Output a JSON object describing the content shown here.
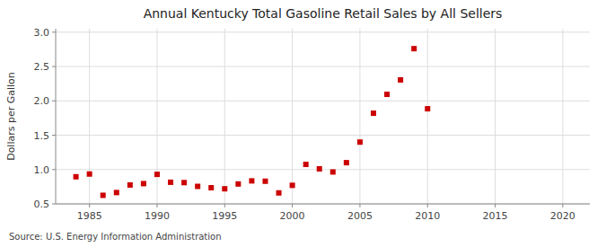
{
  "chart_data": {
    "type": "scatter",
    "title": "Annual Kentucky Total Gasoline Retail Sales by All Sellers",
    "ylabel": "Dollars per Gallon",
    "annotations": [
      "Source: U.S. Energy Information Administration"
    ],
    "x": [
      1984,
      1985,
      1986,
      1987,
      1988,
      1989,
      1990,
      1991,
      1992,
      1993,
      1994,
      1995,
      1996,
      1997,
      1998,
      1999,
      2000,
      2001,
      2002,
      2003,
      2004,
      2005,
      2006,
      2007,
      2008,
      2009,
      2010
    ],
    "values": [
      0.895,
      0.935,
      0.625,
      0.665,
      0.775,
      0.795,
      0.93,
      0.815,
      0.81,
      0.755,
      0.735,
      0.72,
      0.79,
      0.835,
      0.83,
      0.66,
      0.77,
      1.075,
      1.01,
      0.965,
      1.1,
      1.4,
      1.82,
      2.095,
      2.305,
      2.76,
      1.885
    ],
    "color": "#cc0000",
    "marker": "square",
    "xlim": [
      1982.5,
      2022
    ],
    "ylim": [
      0.5,
      3.05
    ],
    "xticks": [
      1985,
      1990,
      1995,
      2000,
      2005,
      2010,
      2015,
      2020
    ],
    "yticks": [
      0.5,
      {
        "value": 1.0,
        "label": "1.0"
      },
      1.5,
      {
        "value": 2.0,
        "label": "2.0"
      },
      2.5,
      {
        "value": 3.0,
        "label": "3.0"
      }
    ],
    "grid": true
  }
}
